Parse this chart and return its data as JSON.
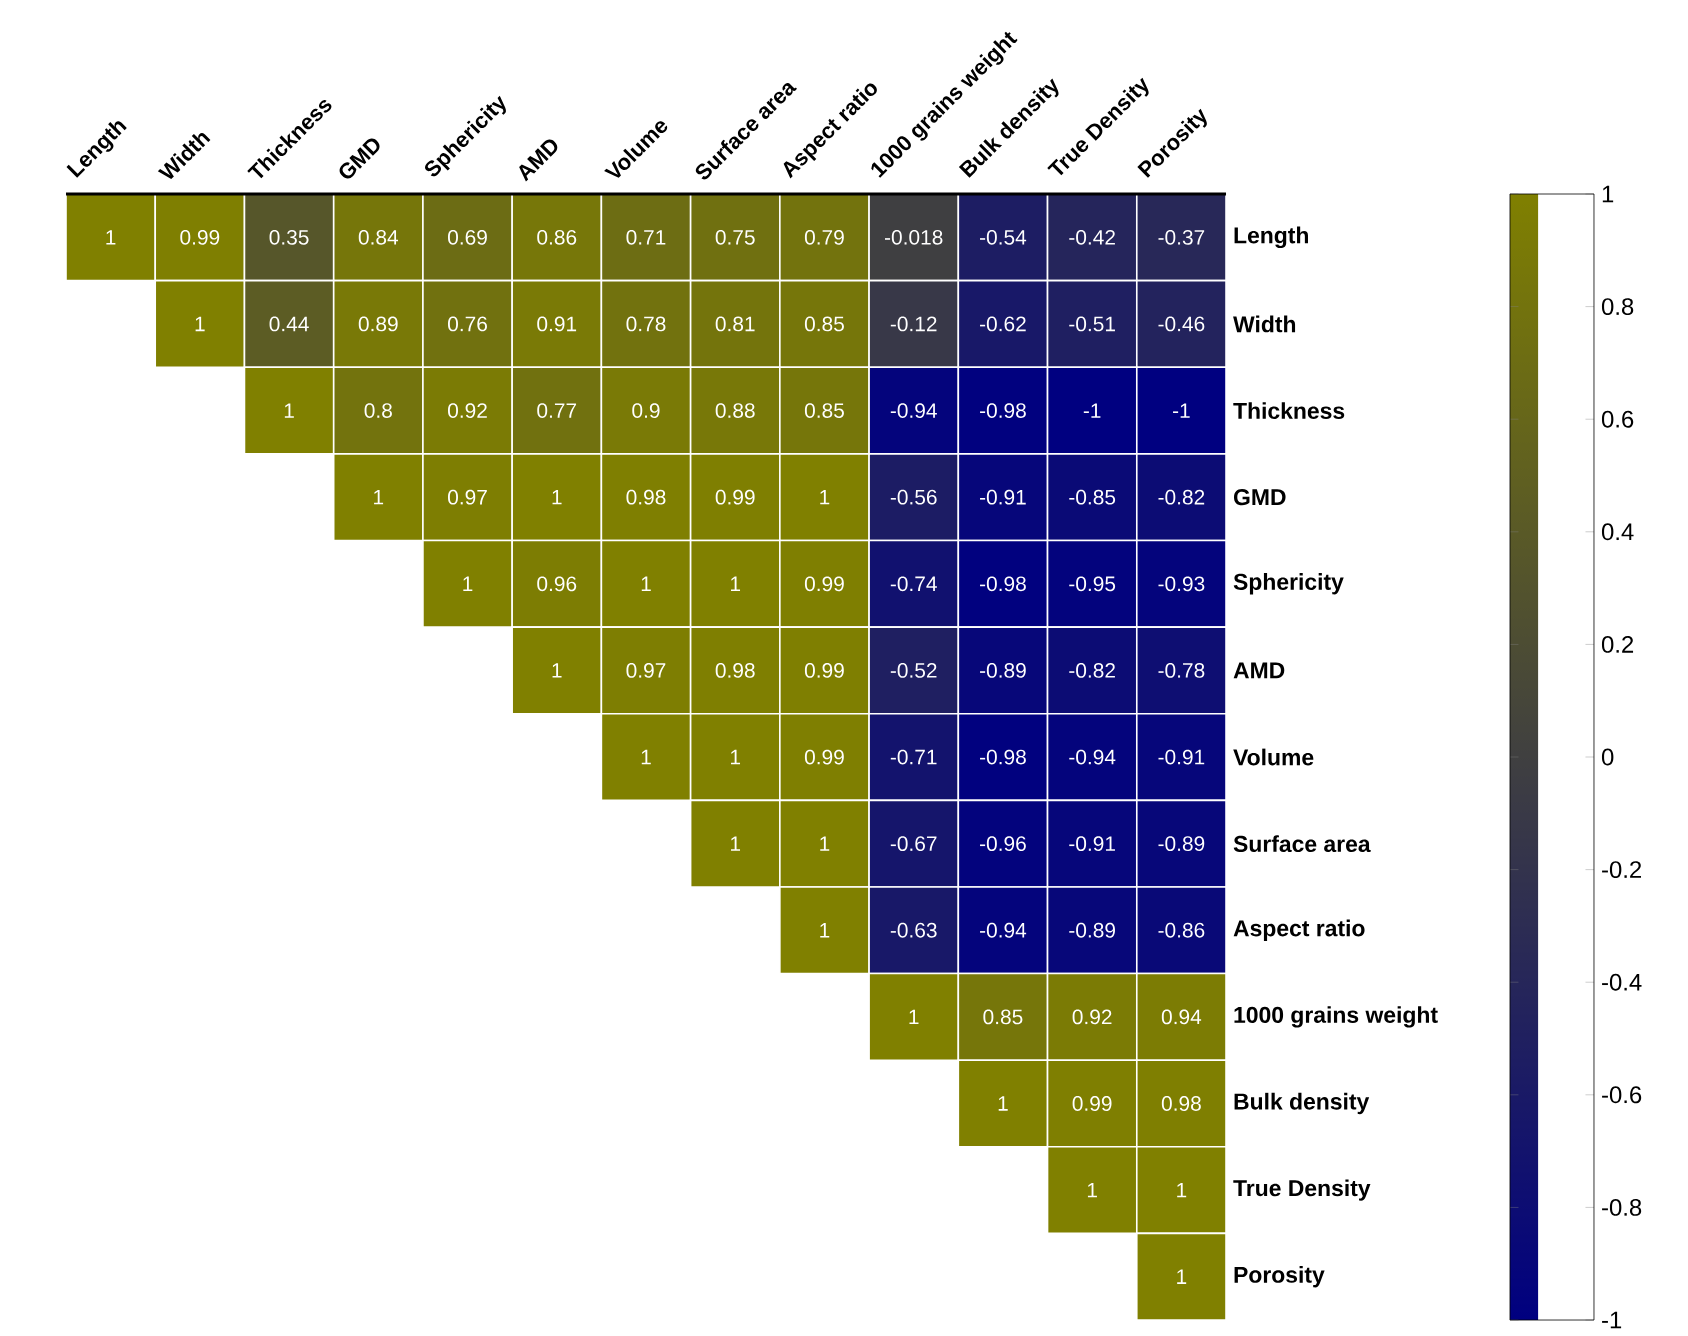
{
  "chart_data": {
    "type": "heatmap",
    "categories": [
      "Length",
      "Width",
      "Thickness",
      "GMD",
      "Sphericity",
      "AMD",
      "Volume",
      "Surface area",
      "Aspect ratio",
      "1000 grains weight",
      "Bulk density",
      "True Density",
      "Porosity"
    ],
    "y_categories": [
      "Length",
      "Width",
      "Thickness",
      "GMD",
      "Sphericity",
      "AMD",
      "Volume",
      "Surface area",
      "Aspect ratio",
      "1000 grains weight",
      "Bulk density",
      "True Density",
      "Porosity"
    ],
    "cells": [
      [
        1,
        0.99,
        0.35,
        0.84,
        0.69,
        0.86,
        0.71,
        0.75,
        0.79,
        -0.018,
        -0.54,
        -0.42,
        -0.37
      ],
      [
        null,
        1,
        0.44,
        0.89,
        0.76,
        0.91,
        0.78,
        0.81,
        0.85,
        -0.12,
        -0.62,
        -0.51,
        -0.46
      ],
      [
        null,
        null,
        1,
        0.8,
        0.92,
        0.77,
        0.9,
        0.88,
        0.85,
        -0.94,
        -0.98,
        -1,
        -1
      ],
      [
        null,
        null,
        null,
        1,
        0.97,
        1,
        0.98,
        0.99,
        1,
        -0.56,
        -0.91,
        -0.85,
        -0.82
      ],
      [
        null,
        null,
        null,
        null,
        1,
        0.96,
        1,
        1,
        0.99,
        -0.74,
        -0.98,
        -0.95,
        -0.93
      ],
      [
        null,
        null,
        null,
        null,
        null,
        1,
        0.97,
        0.98,
        0.99,
        -0.52,
        -0.89,
        -0.82,
        -0.78
      ],
      [
        null,
        null,
        null,
        null,
        null,
        null,
        1,
        1,
        0.99,
        -0.71,
        -0.98,
        -0.94,
        -0.91
      ],
      [
        null,
        null,
        null,
        null,
        null,
        null,
        null,
        1,
        1,
        -0.67,
        -0.96,
        -0.91,
        -0.89
      ],
      [
        null,
        null,
        null,
        null,
        null,
        null,
        null,
        null,
        1,
        -0.63,
        -0.94,
        -0.89,
        -0.86
      ],
      [
        null,
        null,
        null,
        null,
        null,
        null,
        null,
        null,
        null,
        1,
        0.85,
        0.92,
        0.94
      ],
      [
        null,
        null,
        null,
        null,
        null,
        null,
        null,
        null,
        null,
        null,
        1,
        0.99,
        0.98
      ],
      [
        null,
        null,
        null,
        null,
        null,
        null,
        null,
        null,
        null,
        null,
        null,
        1,
        1
      ],
      [
        null,
        null,
        null,
        null,
        null,
        null,
        null,
        null,
        null,
        null,
        null,
        null,
        1
      ]
    ],
    "data_labels": true,
    "clim": [
      -1,
      1
    ],
    "cticks": [
      -1,
      -0.8,
      -0.6,
      -0.4,
      -0.2,
      0,
      0.2,
      0.4,
      0.6,
      0.8,
      1
    ]
  }
}
